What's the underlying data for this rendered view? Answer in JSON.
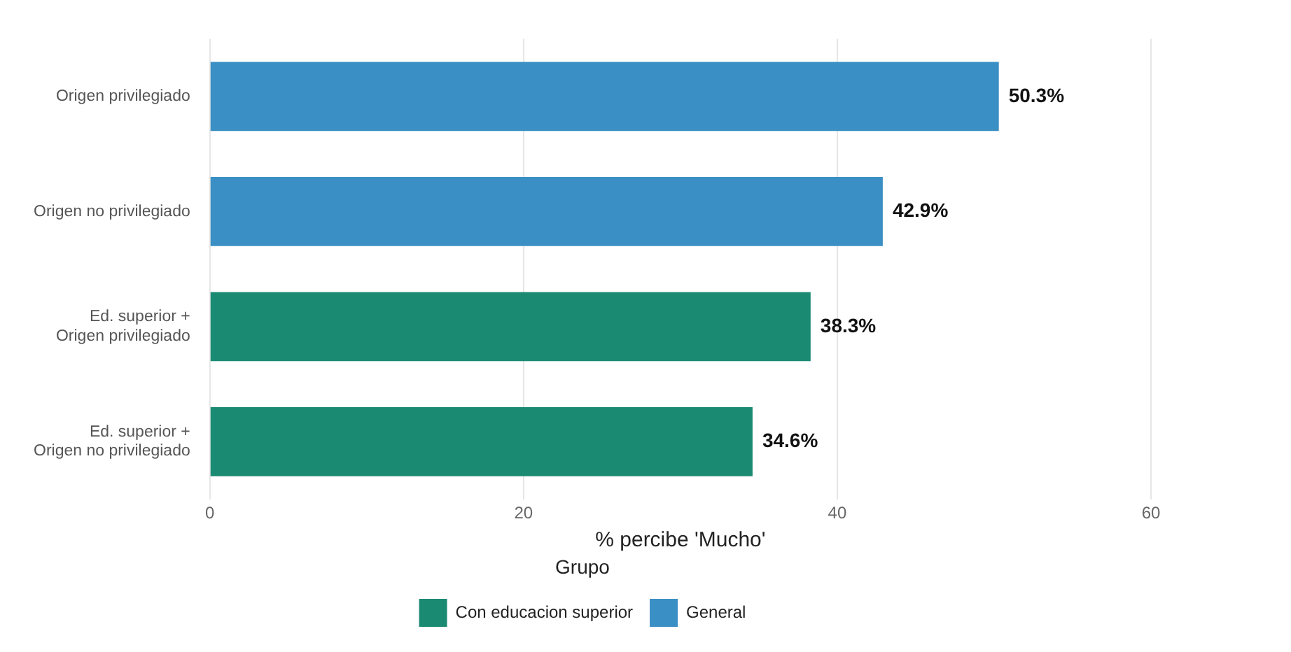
{
  "chart_data": {
    "type": "bar",
    "orientation": "horizontal",
    "xlabel": "% percibe 'Mucho'",
    "legend_title": "Grupo",
    "categories": [
      "Origen privilegiado",
      "Origen no privilegiado",
      "Ed. superior +\nOrigen privilegiado",
      "Ed. superior +\nOrigen no privilegiado"
    ],
    "series": [
      {
        "name": "Con educacion superior",
        "color": "#1b8a73",
        "values": [
          null,
          null,
          38.3,
          34.6
        ],
        "value_labels": [
          null,
          null,
          "38.3%",
          "34.6%"
        ]
      },
      {
        "name": "General",
        "color": "#3a8fc4",
        "values": [
          50.3,
          42.9,
          null,
          null
        ],
        "value_labels": [
          "50.3%",
          "42.9%",
          null,
          null
        ]
      }
    ],
    "xlim": [
      0,
      60
    ],
    "xticks": [
      0,
      20,
      40,
      60
    ],
    "grid": "x",
    "legend": "bottom"
  }
}
